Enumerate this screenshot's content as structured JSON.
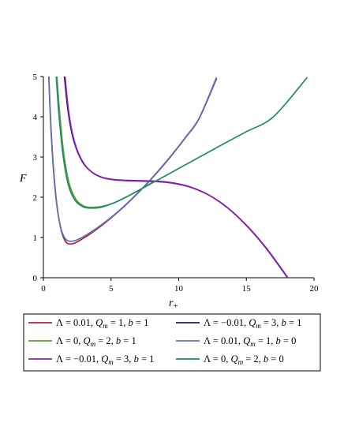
{
  "chart_data": {
    "type": "line",
    "title": "",
    "xlabel": "r",
    "xlabel_sub": "+",
    "ylabel": "F",
    "xlim": [
      0,
      20
    ],
    "ylim": [
      0,
      5
    ],
    "xticks": [
      0,
      5,
      10,
      15,
      20
    ],
    "yticks": [
      0,
      1,
      2,
      3,
      4,
      5
    ],
    "grid": false,
    "legend_position": "bottom",
    "series": [
      {
        "name": "Λ = 0.01, Q_m = 1, b = 1",
        "legend": {
          "lambda": "0.01",
          "Qm": "1",
          "b": "1"
        },
        "color": "#b0203a",
        "x": [
          0.4,
          0.55,
          0.75,
          1.0,
          1.3,
          1.6,
          1.9,
          2.3,
          2.8,
          3.5,
          4.5,
          5.5,
          6.5,
          7.5,
          8.5,
          9.5,
          10.5,
          11.5,
          12.8
        ],
        "y": [
          5.0,
          3.8,
          2.7,
          1.8,
          1.2,
          0.92,
          0.84,
          0.86,
          0.95,
          1.1,
          1.35,
          1.63,
          1.94,
          2.28,
          2.65,
          3.05,
          3.48,
          3.95,
          4.95
        ]
      },
      {
        "name": "Λ = −0.01, Q_m = 3, b = 1",
        "legend": {
          "lambda": "−0.01",
          "Qm": "3",
          "b": "1"
        },
        "color": "#1f1a7a",
        "x": [
          1.55,
          1.8,
          2.1,
          2.5,
          3.0,
          3.6,
          4.3,
          5.2,
          6.2,
          7.2,
          8.3,
          9.5,
          10.8,
          12.2,
          13.6,
          15.0,
          16.3,
          17.3,
          18.0
        ],
        "y": [
          5.0,
          4.2,
          3.6,
          3.15,
          2.82,
          2.62,
          2.5,
          2.44,
          2.42,
          2.41,
          2.4,
          2.36,
          2.26,
          2.06,
          1.74,
          1.3,
          0.8,
          0.35,
          0.02
        ]
      },
      {
        "name": "Λ = 0, Q_m = 2, b = 1",
        "legend": {
          "lambda": "0",
          "Qm": "2",
          "b": "1"
        },
        "color": "#5aa02c",
        "x": [
          1.0,
          1.2,
          1.5,
          1.9,
          2.4,
          3.0,
          3.6,
          4.3,
          5.2,
          6.2,
          7.2,
          8.2
        ],
        "y": [
          5.0,
          4.1,
          3.1,
          2.35,
          1.95,
          1.78,
          1.75,
          1.77,
          1.86,
          2.02,
          2.2,
          2.4
        ]
      },
      {
        "name": "Λ = 0.01, Q_m = 1, b = 0",
        "legend": {
          "lambda": "0.01",
          "Qm": "1",
          "b": "0"
        },
        "color": "#5a72b8",
        "x": [
          0.4,
          0.55,
          0.75,
          1.0,
          1.3,
          1.6,
          1.9,
          2.3,
          2.8,
          3.5,
          4.5,
          5.5,
          6.5,
          7.5,
          8.5,
          9.5,
          10.5,
          11.5,
          12.8
        ],
        "y": [
          5.0,
          3.75,
          2.65,
          1.78,
          1.22,
          0.98,
          0.91,
          0.92,
          0.99,
          1.13,
          1.37,
          1.64,
          1.95,
          2.29,
          2.66,
          3.06,
          3.49,
          3.96,
          4.98
        ]
      },
      {
        "name": "Λ = −0.01, Q_m = 3, b = 1",
        "legend": {
          "lambda": "−0.01",
          "Qm": "3",
          "b": "1"
        },
        "color": "#8a1fb5",
        "x": [
          1.6,
          1.85,
          2.15,
          2.55,
          3.05,
          3.65,
          4.35,
          5.25,
          6.25,
          7.25,
          8.35,
          9.55,
          10.85,
          12.25,
          13.65,
          15.05,
          16.35,
          17.35,
          18.05
        ],
        "y": [
          5.0,
          4.18,
          3.58,
          3.13,
          2.81,
          2.61,
          2.49,
          2.43,
          2.41,
          2.4,
          2.39,
          2.35,
          2.25,
          2.05,
          1.73,
          1.29,
          0.79,
          0.34,
          0.01
        ]
      },
      {
        "name": "Λ = 0, Q_m = 2, b = 0",
        "legend": {
          "lambda": "0",
          "Qm": "2",
          "b": "0"
        },
        "color": "#1f8a6e",
        "x": [
          0.95,
          1.15,
          1.45,
          1.85,
          2.35,
          2.95,
          3.55,
          4.25,
          5.15,
          6.15,
          7.2,
          9.0,
          11.0,
          13.0,
          15.0,
          17.0,
          19.5
        ],
        "y": [
          5.0,
          4.05,
          3.05,
          2.3,
          1.92,
          1.76,
          1.73,
          1.75,
          1.85,
          2.01,
          2.2,
          2.53,
          2.9,
          3.27,
          3.63,
          4.0,
          4.98
        ]
      }
    ]
  }
}
